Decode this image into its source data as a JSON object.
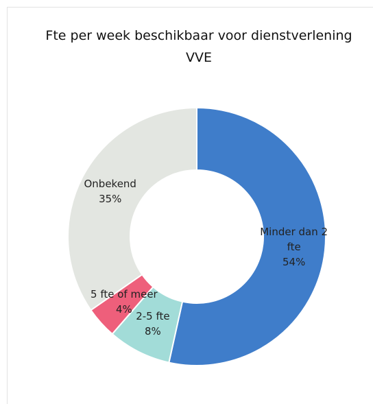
{
  "chart_data": {
    "type": "donut",
    "title": "Fte per week beschikbaar voor dienstverlening VVE",
    "categories": [
      "Minder dan 2 fte",
      "2-5 fte",
      "5 fte of meer",
      "Onbekend"
    ],
    "values": [
      54,
      8,
      4,
      35
    ],
    "value_labels": [
      "54%",
      "8%",
      "4%",
      "35%"
    ],
    "colors": [
      "#3f7dca",
      "#a2dcd8",
      "#ee5f7b",
      "#e3e6e1"
    ]
  }
}
